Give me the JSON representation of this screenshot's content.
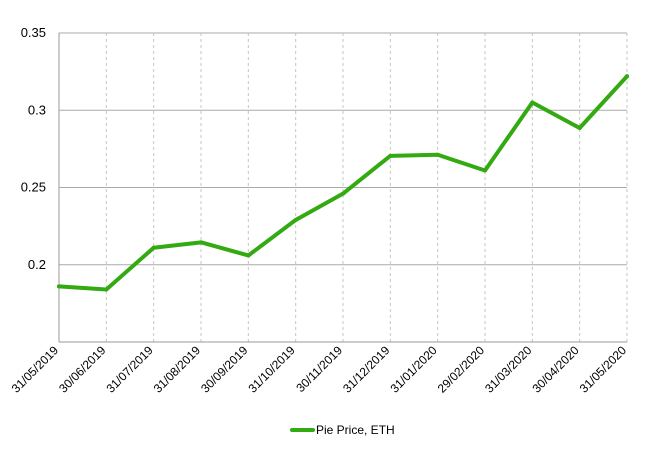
{
  "chart_data": {
    "type": "line",
    "x": [
      "31/05/2019",
      "30/06/2019",
      "31/07/2019",
      "31/08/2019",
      "30/09/2019",
      "31/10/2019",
      "30/11/2019",
      "31/12/2019",
      "31/01/2020",
      "29/02/2020",
      "31/03/2020",
      "30/04/2020",
      "31/05/2020"
    ],
    "series": [
      {
        "name": "Pie Price, ETH",
        "color": "#33aa11",
        "values": [
          0.186,
          0.184,
          0.211,
          0.2145,
          0.206,
          0.229,
          0.246,
          0.2705,
          0.2712,
          0.261,
          0.305,
          0.2885,
          0.322
        ]
      }
    ],
    "ylim": [
      0.15,
      0.35
    ],
    "yticks": [
      0.2,
      0.25,
      0.3,
      0.35
    ],
    "ytick_labels": [
      "0.2",
      "0.25",
      "0.3",
      "0.35"
    ],
    "grid": true,
    "legend": "bottom-center",
    "title": "",
    "xlabel": "",
    "ylabel": ""
  }
}
